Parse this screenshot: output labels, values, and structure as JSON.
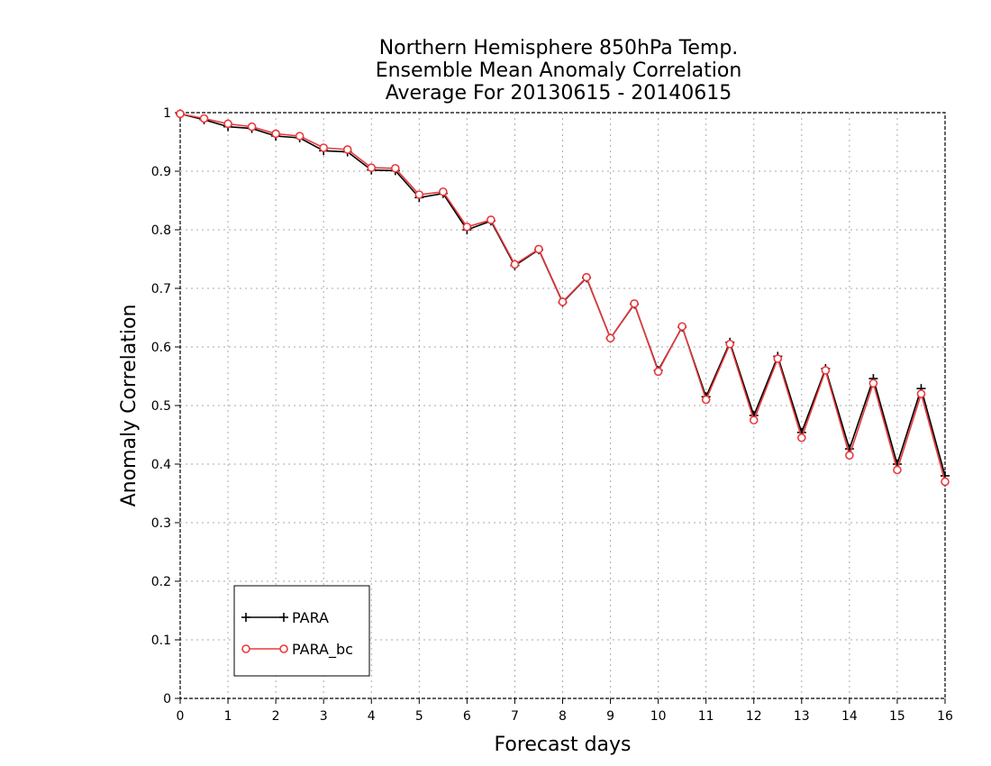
{
  "chart_data": {
    "type": "line",
    "title": [
      "Northern Hemisphere 850hPa Temp.",
      "Ensemble Mean Anomaly Correlation",
      "Average For 20130615 - 20140615"
    ],
    "xlabel": "Forecast days",
    "ylabel": "Anomaly Correlation",
    "xlim": [
      0,
      16
    ],
    "ylim": [
      0,
      1
    ],
    "xticks": [
      "0",
      "1",
      "2",
      "3",
      "4",
      "5",
      "6",
      "7",
      "8",
      "9",
      "10",
      "11",
      "12",
      "13",
      "14",
      "15",
      "16"
    ],
    "yticks": [
      "0",
      "0.1",
      "0.2",
      "0.3",
      "0.4",
      "0.5",
      "0.6",
      "0.7",
      "0.8",
      "0.9",
      "1"
    ],
    "grid": true,
    "legend_position": "bottom-left",
    "x": [
      0,
      0.5,
      1,
      1.5,
      2,
      2.5,
      3,
      3.5,
      4,
      4.5,
      5,
      5.5,
      6,
      6.5,
      7,
      7.5,
      8,
      8.5,
      9,
      9.5,
      10,
      10.5,
      11,
      11.5,
      12,
      12.5,
      13,
      13.5,
      14,
      14.5,
      15,
      15.5,
      16
    ],
    "series": [
      {
        "name": "PARA",
        "color": "#000000",
        "marker": "plus",
        "values": [
          0.998,
          0.988,
          0.976,
          0.973,
          0.96,
          0.957,
          0.935,
          0.933,
          0.902,
          0.901,
          0.855,
          0.862,
          0.8,
          0.815,
          0.739,
          0.766,
          0.676,
          0.718,
          0.615,
          0.673,
          0.56,
          0.634,
          0.515,
          0.608,
          0.483,
          0.584,
          0.454,
          0.563,
          0.426,
          0.546,
          0.4,
          0.529,
          0.38
        ]
      },
      {
        "name": "PARA_bc",
        "color": "#e8393e",
        "marker": "circle",
        "values": [
          0.998,
          0.99,
          0.981,
          0.976,
          0.964,
          0.96,
          0.94,
          0.937,
          0.906,
          0.905,
          0.86,
          0.865,
          0.805,
          0.817,
          0.741,
          0.767,
          0.677,
          0.719,
          0.615,
          0.674,
          0.558,
          0.635,
          0.51,
          0.605,
          0.475,
          0.58,
          0.445,
          0.56,
          0.415,
          0.538,
          0.39,
          0.52,
          0.37
        ]
      }
    ]
  }
}
